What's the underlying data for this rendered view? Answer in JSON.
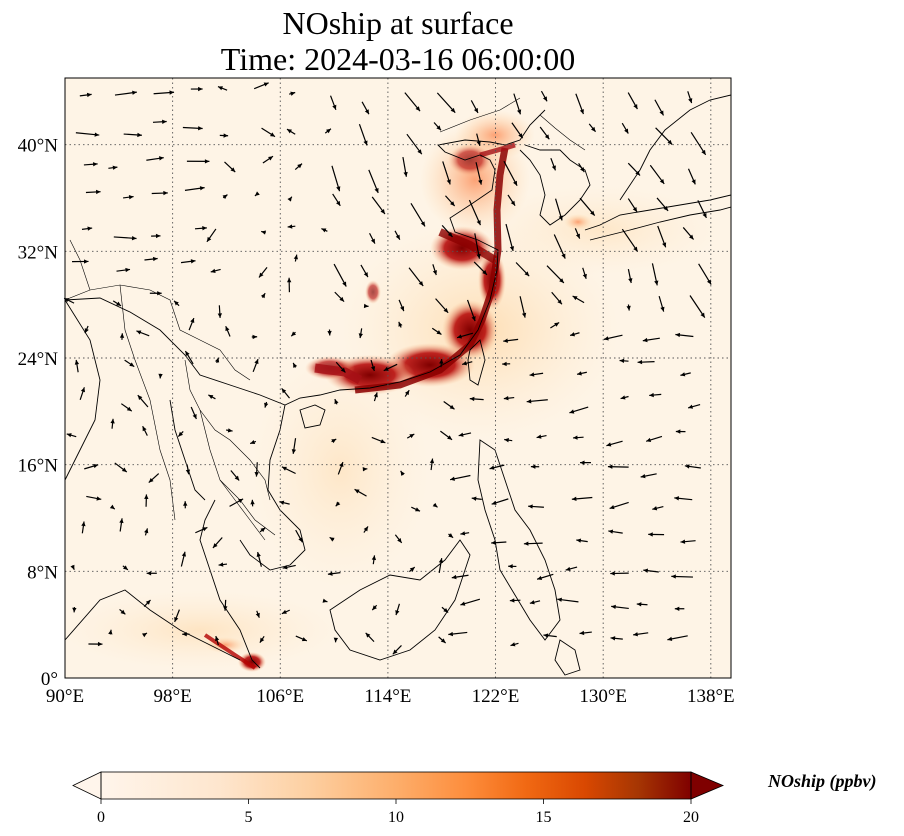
{
  "title_line1": "NOship at surface",
  "title_line2": "Time: 2024-03-16 06:00:00",
  "map": {
    "lon_range": [
      90,
      139.5
    ],
    "lat_range": [
      0,
      45
    ],
    "lon_ticks": [
      "90°E",
      "98°E",
      "106°E",
      "114°E",
      "122°E",
      "130°E",
      "138°E"
    ],
    "lon_values": [
      90,
      98,
      106,
      114,
      122,
      130,
      138
    ],
    "lat_ticks": [
      "0°",
      "8°N",
      "16°N",
      "24°N",
      "32°N",
      "40°N"
    ],
    "lat_values": [
      0,
      8,
      16,
      24,
      32,
      40
    ],
    "gridline_style": "dotted gray"
  },
  "colorbar": {
    "label": "NOship (ppbv)",
    "ticks": [
      "0",
      "5",
      "10",
      "15",
      "20"
    ],
    "tick_values": [
      0,
      5,
      10,
      15,
      20
    ],
    "range": [
      0,
      20
    ],
    "colormap": [
      "#fff5eb",
      "#fee6ce",
      "#fdd0a2",
      "#fdae6b",
      "#fd8d3c",
      "#f16913",
      "#d94801",
      "#a63603",
      "#7f2704"
    ],
    "extend": "both"
  }
}
